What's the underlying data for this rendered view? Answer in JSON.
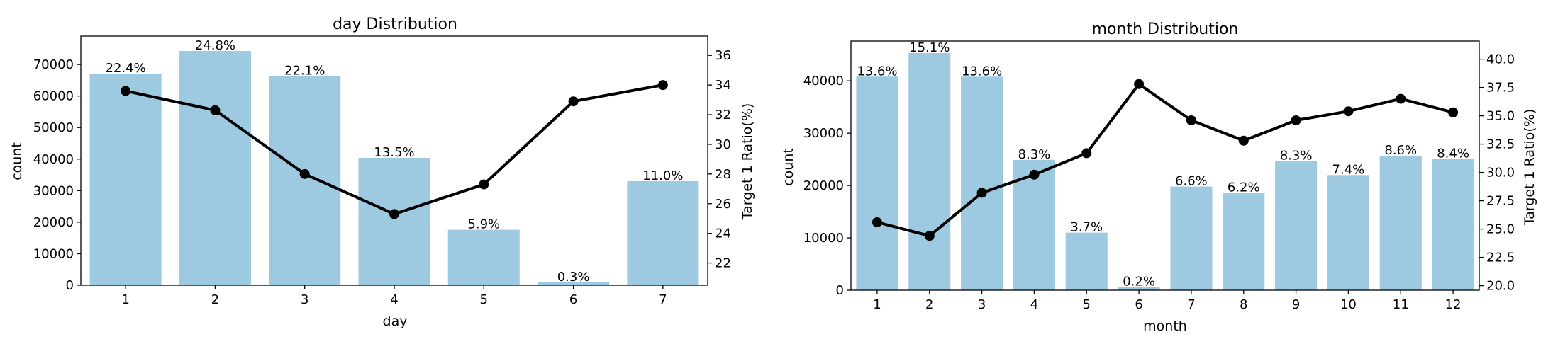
{
  "chart_data": [
    {
      "type": "bar",
      "title": "day Distribution",
      "xlabel": "day",
      "ylabel": "count",
      "y2label": "Target 1 Ratio(%)",
      "categories": [
        "1",
        "2",
        "3",
        "4",
        "5",
        "6",
        "7"
      ],
      "values": [
        67100,
        74300,
        66300,
        40400,
        17600,
        900,
        33000
      ],
      "bar_labels": [
        "22.4%",
        "24.8%",
        "22.1%",
        "13.5%",
        "5.9%",
        "0.3%",
        "11.0%"
      ],
      "line_values": [
        33.6,
        32.3,
        28.0,
        25.3,
        27.3,
        32.9,
        34.0
      ],
      "ylim": [
        0,
        79000
      ],
      "yticks": [
        0,
        10000,
        20000,
        30000,
        40000,
        50000,
        60000,
        70000
      ],
      "y2lim": [
        20.5,
        37.3
      ],
      "y2ticks": [
        22,
        24,
        26,
        28,
        30,
        32,
        34,
        36
      ],
      "bar_color": "#9ecae1",
      "line_color": "#000000"
    },
    {
      "type": "bar",
      "title": "month Distribution",
      "xlabel": "month",
      "ylabel": "count",
      "y2label": "Target 1 Ratio(%)",
      "categories": [
        "1",
        "2",
        "3",
        "4",
        "5",
        "6",
        "7",
        "8",
        "9",
        "10",
        "11",
        "12"
      ],
      "values": [
        40800,
        45300,
        40800,
        24900,
        11000,
        600,
        19800,
        18600,
        24700,
        22000,
        25700,
        25100
      ],
      "bar_labels": [
        "13.6%",
        "15.1%",
        "13.6%",
        "8.3%",
        "3.7%",
        "0.2%",
        "6.6%",
        "6.2%",
        "8.3%",
        "7.4%",
        "8.6%",
        "8.4%"
      ],
      "line_values": [
        25.6,
        24.4,
        28.2,
        29.8,
        31.7,
        37.8,
        34.6,
        32.8,
        34.6,
        35.4,
        36.5,
        35.3
      ],
      "ylim": [
        0,
        47600
      ],
      "yticks": [
        0,
        10000,
        20000,
        30000,
        40000
      ],
      "y2lim": [
        19.6,
        41.6
      ],
      "y2ticks": [
        20.0,
        22.5,
        25.0,
        27.5,
        30.0,
        32.5,
        35.0,
        37.5,
        40.0
      ],
      "bar_color": "#9ecae1",
      "line_color": "#000000"
    }
  ]
}
